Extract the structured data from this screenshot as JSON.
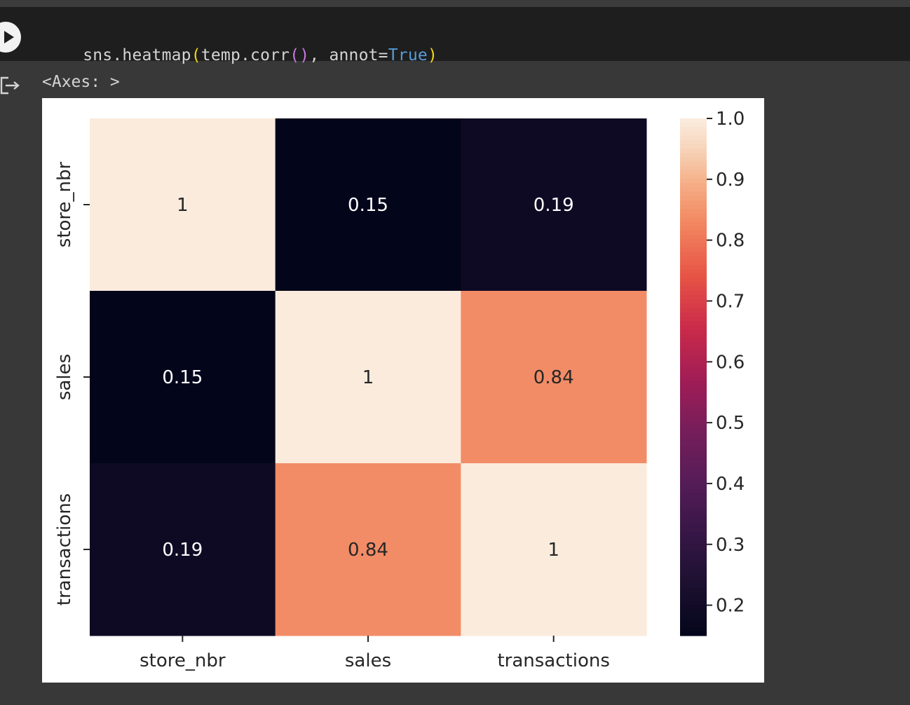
{
  "code_cell": {
    "tokens": [
      {
        "text": "sns.heatmap",
        "kind": "plain"
      },
      {
        "text": "(",
        "kind": "paren1"
      },
      {
        "text": "temp.corr",
        "kind": "plain"
      },
      {
        "text": "()",
        "kind": "paren2"
      },
      {
        "text": ", annot=",
        "kind": "plain"
      },
      {
        "text": "True",
        "kind": "kw"
      },
      {
        "text": ")",
        "kind": "paren1"
      }
    ]
  },
  "output": {
    "text": "<Axes: >"
  },
  "icons": {
    "run": "play-icon",
    "output": "output-redirect-icon"
  },
  "chart_data": {
    "type": "heatmap",
    "x_labels": [
      "store_nbr",
      "sales",
      "transactions"
    ],
    "y_labels": [
      "store_nbr",
      "sales",
      "transactions"
    ],
    "values": [
      [
        1,
        0.15,
        0.19
      ],
      [
        0.15,
        1,
        0.84
      ],
      [
        0.19,
        0.84,
        1
      ]
    ],
    "annotations": [
      [
        "1",
        "0.15",
        "0.19"
      ],
      [
        "0.15",
        "1",
        "0.84"
      ],
      [
        "0.19",
        "0.84",
        "1"
      ]
    ],
    "colorbar": {
      "range": [
        0.15,
        1.0
      ],
      "ticks": [
        "1.0",
        "0.9",
        "0.8",
        "0.7",
        "0.6",
        "0.5",
        "0.4",
        "0.3",
        "0.2"
      ],
      "colormap": "rocket"
    },
    "colors": {
      "low": "#03051a",
      "high": "#faebdd"
    }
  }
}
